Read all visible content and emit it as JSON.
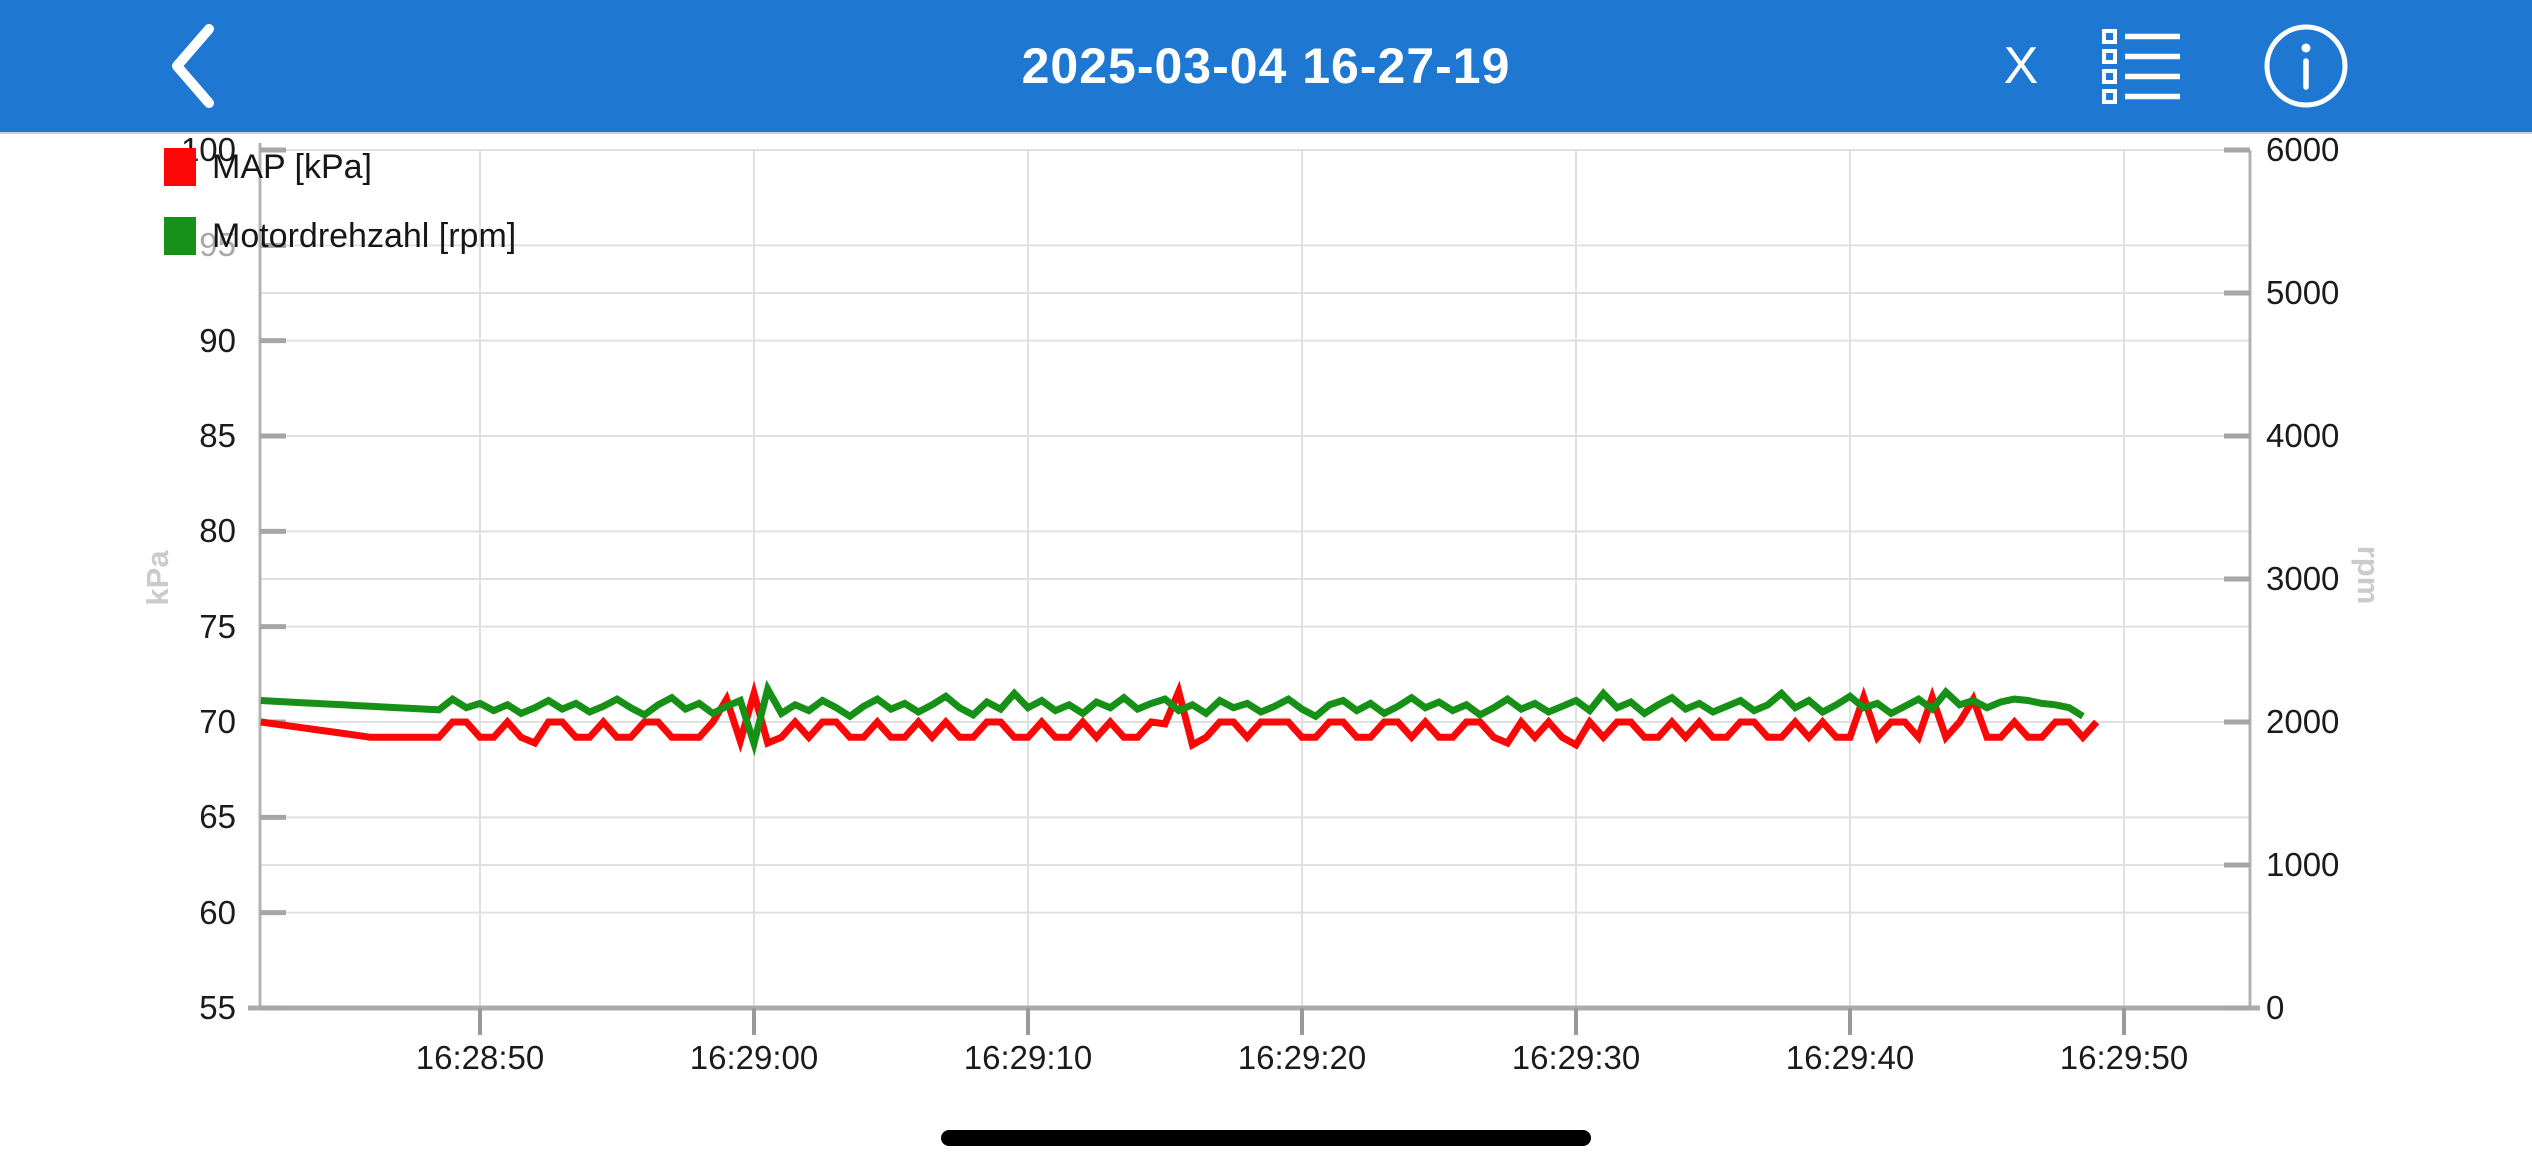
{
  "header": {
    "title": "2025-03-04 16-27-19",
    "close_label": "X"
  },
  "colors": {
    "header_bg": "#1e78d2",
    "map_red": "#fb0707",
    "rpm_green": "#169016",
    "grid": "#e0e0e0",
    "axis": "#b3b3b3",
    "tick_label": "#1b1b1d",
    "muted_tick_label": "#a9a9a9"
  },
  "icons": {
    "back": "chevron-left-icon",
    "close": "close-x",
    "menu": "bulleted-list-icon",
    "info": "info-circle-icon"
  },
  "chart_data": {
    "type": "line",
    "title": "",
    "x_axis": {
      "tick_labels": [
        "16:28:50",
        "16:29:00",
        "16:29:10",
        "16:29:20",
        "16:29:30",
        "16:29:40",
        "16:29:50"
      ],
      "tick_interval_s": 10
    },
    "y_left": {
      "label": "kPa",
      "ticks": [
        55,
        60,
        65,
        70,
        75,
        80,
        85,
        90,
        95,
        100
      ],
      "range": [
        55,
        100
      ],
      "muted_tick": 95
    },
    "y_right": {
      "label": "rpm",
      "ticks": [
        0,
        1000,
        2000,
        3000,
        4000,
        5000,
        6000
      ],
      "range": [
        0,
        6000
      ]
    },
    "grid": true,
    "legend_position": "top-left",
    "series": [
      {
        "name": "MAP [kPa]",
        "color": "#fb0707",
        "axis": "left",
        "start_s": -8,
        "step_s": 0.5,
        "values": [
          70,
          69.9,
          69.8,
          69.7,
          69.6,
          69.5,
          69.4,
          69.3,
          69.2,
          69.2,
          69.2,
          69.2,
          69.2,
          69.2,
          70,
          70,
          69.2,
          69.2,
          70,
          69.2,
          68.9,
          70,
          70,
          69.2,
          69.2,
          70,
          69.2,
          69.2,
          70,
          70,
          69.2,
          69.2,
          69.2,
          70,
          71.2,
          69,
          71.5,
          68.9,
          69.2,
          70,
          69.2,
          70,
          70,
          69.2,
          69.2,
          70,
          69.2,
          69.2,
          70,
          69.2,
          70,
          69.2,
          69.2,
          70,
          70,
          69.2,
          69.2,
          70,
          69.2,
          69.2,
          70,
          69.2,
          70,
          69.2,
          69.2,
          70,
          69.9,
          71.6,
          68.8,
          69.2,
          70,
          70,
          69.2,
          70,
          70,
          70,
          69.2,
          69.2,
          70,
          70,
          69.2,
          69.2,
          70,
          70,
          69.2,
          70,
          69.2,
          69.2,
          70,
          70,
          69.2,
          68.9,
          70,
          69.2,
          70,
          69.2,
          68.8,
          70,
          69.2,
          70,
          70,
          69.2,
          69.2,
          70,
          69.2,
          70,
          69.2,
          69.2,
          70,
          70,
          69.2,
          69.2,
          70,
          69.2,
          70,
          69.2,
          69.2,
          71.3,
          69.2,
          70,
          70,
          69.2,
          71.3,
          69.2,
          70,
          71.2,
          69.2,
          69.2,
          70,
          69.2,
          69.2,
          70,
          70,
          69.2,
          70
        ]
      },
      {
        "name": "Motordrehzahl [rpm]",
        "color": "#169016",
        "axis": "right",
        "start_s": -8,
        "step_s": 0.5,
        "values": [
          2150,
          2145,
          2140,
          2135,
          2130,
          2125,
          2120,
          2115,
          2110,
          2105,
          2100,
          2095,
          2090,
          2085,
          2160,
          2100,
          2130,
          2080,
          2120,
          2060,
          2100,
          2150,
          2090,
          2130,
          2070,
          2110,
          2160,
          2100,
          2050,
          2120,
          2170,
          2090,
          2130,
          2060,
          2110,
          2150,
          1850,
          2230,
          2060,
          2120,
          2080,
          2150,
          2100,
          2040,
          2110,
          2160,
          2090,
          2130,
          2070,
          2120,
          2180,
          2100,
          2050,
          2140,
          2090,
          2200,
          2100,
          2150,
          2080,
          2120,
          2060,
          2140,
          2100,
          2170,
          2090,
          2130,
          2160,
          2080,
          2120,
          2060,
          2150,
          2100,
          2130,
          2070,
          2110,
          2160,
          2090,
          2040,
          2120,
          2150,
          2080,
          2130,
          2060,
          2110,
          2170,
          2100,
          2140,
          2080,
          2120,
          2050,
          2100,
          2160,
          2090,
          2130,
          2070,
          2110,
          2150,
          2080,
          2200,
          2100,
          2140,
          2060,
          2120,
          2170,
          2090,
          2130,
          2070,
          2110,
          2150,
          2080,
          2120,
          2200,
          2100,
          2150,
          2070,
          2120,
          2180,
          2100,
          2130,
          2060,
          2110,
          2160,
          2090,
          2210,
          2120,
          2150,
          2100,
          2140,
          2160,
          2150,
          2130,
          2120,
          2100,
          2040
        ]
      }
    ]
  }
}
